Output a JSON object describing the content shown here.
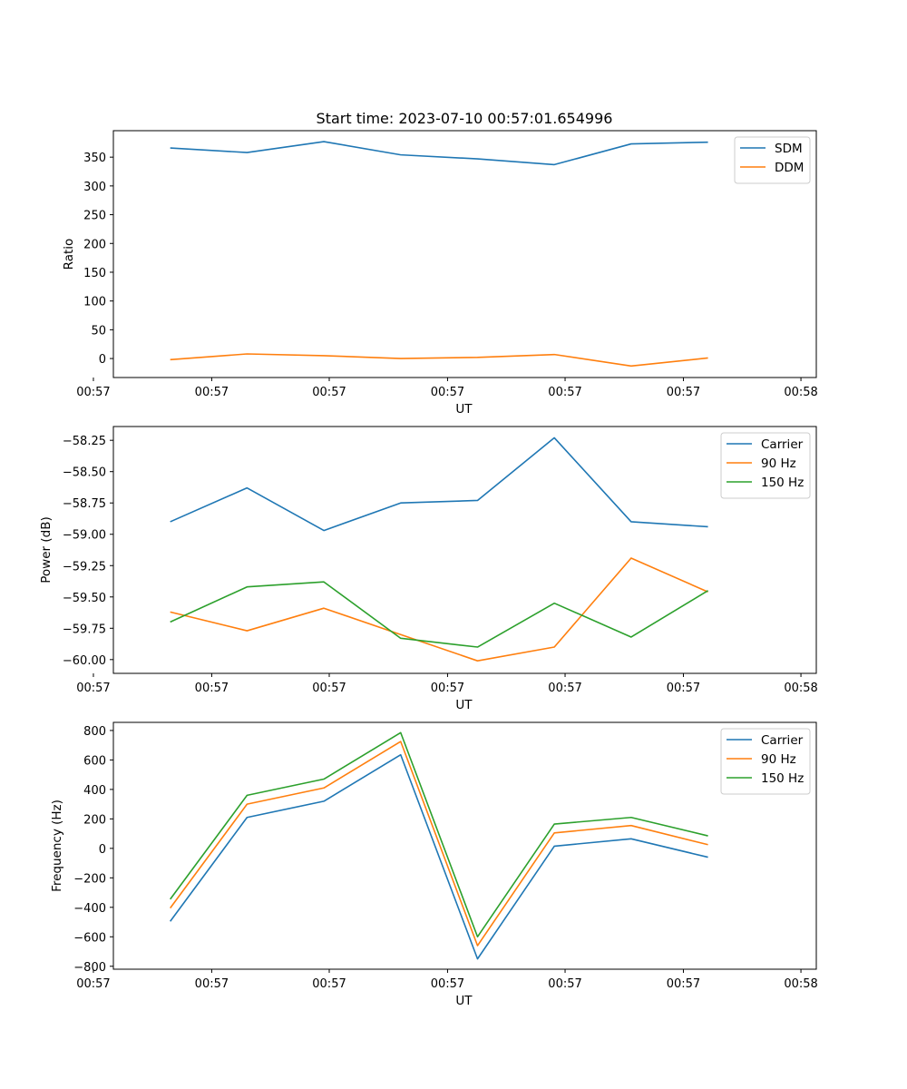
{
  "chart_data": {
    "title": "Start time: 2023-07-10 00:57:01.654996",
    "panels": [
      {
        "type": "line",
        "ylabel": "Ratio",
        "xlabel": "UT",
        "x": [
          1,
          2,
          3,
          4,
          5,
          6,
          7,
          8
        ],
        "xlim": [
          0.26,
          9.41
        ],
        "xticks": [
          {
            "pos": 0.0,
            "label": "00:57"
          },
          {
            "pos": 1.54,
            "label": "00:57"
          },
          {
            "pos": 3.07,
            "label": "00:57"
          },
          {
            "pos": 4.61,
            "label": "00:57"
          },
          {
            "pos": 6.14,
            "label": "00:57"
          },
          {
            "pos": 7.68,
            "label": "00:57"
          },
          {
            "pos": 9.21,
            "label": "00:58"
          }
        ],
        "ylim": [
          -33,
          396
        ],
        "yticks": [
          0,
          50,
          100,
          150,
          200,
          250,
          300,
          350
        ],
        "legend": "upper right",
        "series": [
          {
            "name": "SDM",
            "color": "#1f77b4",
            "values": [
              366,
              358,
              377,
              354,
              347,
              337,
              373,
              376
            ]
          },
          {
            "name": "DDM",
            "color": "#ff7f0e",
            "values": [
              -2,
              8,
              5,
              0,
              2,
              7,
              -13,
              1
            ]
          }
        ]
      },
      {
        "type": "line",
        "ylabel": "Power (dB)",
        "xlabel": "UT",
        "x": [
          1,
          2,
          3,
          4,
          5,
          6,
          7,
          8
        ],
        "xlim": [
          0.26,
          9.41
        ],
        "xticks": [
          {
            "pos": 0.0,
            "label": "00:57"
          },
          {
            "pos": 1.54,
            "label": "00:57"
          },
          {
            "pos": 3.07,
            "label": "00:57"
          },
          {
            "pos": 4.61,
            "label": "00:57"
          },
          {
            "pos": 6.14,
            "label": "00:57"
          },
          {
            "pos": 7.68,
            "label": "00:57"
          },
          {
            "pos": 9.21,
            "label": "00:58"
          }
        ],
        "ylim": [
          -60.11,
          -58.14
        ],
        "yticks": [
          -60.0,
          -59.75,
          -59.5,
          -59.25,
          -59.0,
          -58.75,
          -58.5,
          -58.25
        ],
        "ytick_labels": [
          "−60.00",
          "−59.75",
          "−59.50",
          "−59.25",
          "−59.00",
          "−58.75",
          "−58.50",
          "−58.25"
        ],
        "legend": "upper right",
        "series": [
          {
            "name": "Carrier",
            "color": "#1f77b4",
            "values": [
              -58.9,
              -58.63,
              -58.97,
              -58.75,
              -58.73,
              -58.23,
              -58.9,
              -58.94
            ]
          },
          {
            "name": "90 Hz",
            "color": "#ff7f0e",
            "values": [
              -59.62,
              -59.77,
              -59.59,
              -59.8,
              -60.01,
              -59.9,
              -59.19,
              -59.46
            ]
          },
          {
            "name": "150 Hz",
            "color": "#2ca02c",
            "values": [
              -59.7,
              -59.42,
              -59.38,
              -59.83,
              -59.9,
              -59.55,
              -59.82,
              -59.45
            ]
          }
        ]
      },
      {
        "type": "line",
        "ylabel": "Frequency (Hz)",
        "xlabel": "UT",
        "x": [
          1,
          2,
          3,
          4,
          5,
          6,
          7,
          8
        ],
        "xlim": [
          0.26,
          9.41
        ],
        "xticks": [
          {
            "pos": 0.0,
            "label": "00:57"
          },
          {
            "pos": 1.54,
            "label": "00:57"
          },
          {
            "pos": 3.07,
            "label": "00:57"
          },
          {
            "pos": 4.61,
            "label": "00:57"
          },
          {
            "pos": 6.14,
            "label": "00:57"
          },
          {
            "pos": 7.68,
            "label": "00:57"
          },
          {
            "pos": 9.21,
            "label": "00:58"
          }
        ],
        "ylim": [
          -820,
          855
        ],
        "yticks": [
          -800,
          -600,
          -400,
          -200,
          0,
          200,
          400,
          600,
          800
        ],
        "ytick_labels": [
          "−800",
          "−600",
          "−400",
          "−200",
          "0",
          "200",
          "400",
          "600",
          "800"
        ],
        "legend": "upper right",
        "series": [
          {
            "name": "Carrier",
            "color": "#1f77b4",
            "values": [
              -495,
              210,
              320,
              635,
              -750,
              15,
              65,
              -60
            ]
          },
          {
            "name": "90 Hz",
            "color": "#ff7f0e",
            "values": [
              -405,
              300,
              410,
              725,
              -660,
              105,
              155,
              25
            ]
          },
          {
            "name": "150 Hz",
            "color": "#2ca02c",
            "values": [
              -345,
              360,
              470,
              785,
              -600,
              165,
              210,
              85
            ]
          }
        ]
      }
    ]
  }
}
